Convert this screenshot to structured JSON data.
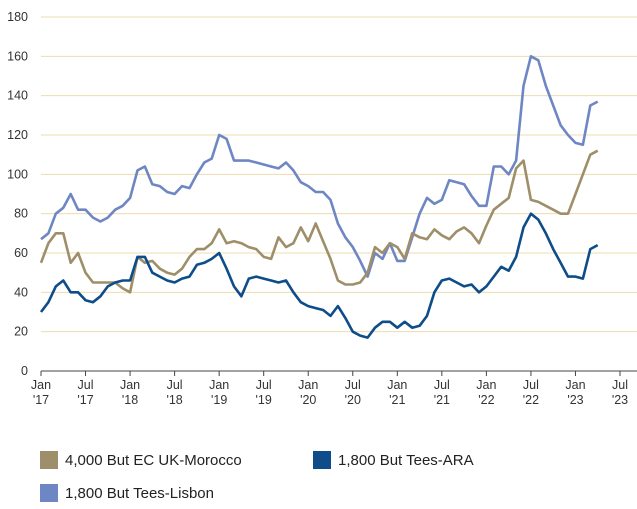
{
  "chart_data": {
    "type": "line",
    "x": [
      "2017-01",
      "2017-02",
      "2017-03",
      "2017-04",
      "2017-05",
      "2017-06",
      "2017-07",
      "2017-08",
      "2017-09",
      "2017-10",
      "2017-11",
      "2017-12",
      "2018-01",
      "2018-02",
      "2018-03",
      "2018-04",
      "2018-05",
      "2018-06",
      "2018-07",
      "2018-08",
      "2018-09",
      "2018-10",
      "2018-11",
      "2018-12",
      "2019-01",
      "2019-02",
      "2019-03",
      "2019-04",
      "2019-05",
      "2019-06",
      "2019-07",
      "2019-08",
      "2019-09",
      "2019-10",
      "2019-11",
      "2019-12",
      "2020-01",
      "2020-02",
      "2020-03",
      "2020-04",
      "2020-05",
      "2020-06",
      "2020-07",
      "2020-08",
      "2020-09",
      "2020-10",
      "2020-11",
      "2020-12",
      "2021-01",
      "2021-02",
      "2021-03",
      "2021-04",
      "2021-05",
      "2021-06",
      "2021-07",
      "2021-08",
      "2021-09",
      "2021-10",
      "2021-11",
      "2021-12",
      "2022-01",
      "2022-02",
      "2022-03",
      "2022-04",
      "2022-05",
      "2022-06",
      "2022-07",
      "2022-08",
      "2022-09",
      "2022-10",
      "2022-11",
      "2022-12",
      "2023-01",
      "2023-02",
      "2023-03",
      "2023-04"
    ],
    "series": [
      {
        "name": "4,000 But EC UK-Morocco",
        "color": "#9e8f6a",
        "values": [
          55,
          65,
          70,
          70,
          55,
          60,
          50,
          45,
          45,
          45,
          45,
          42,
          40,
          58,
          55,
          56,
          52,
          50,
          49,
          52,
          58,
          62,
          62,
          65,
          72,
          65,
          66,
          65,
          63,
          62,
          58,
          57,
          68,
          63,
          65,
          73,
          66,
          75,
          66,
          57,
          46,
          44,
          44,
          45,
          50,
          63,
          60,
          65,
          63,
          57,
          70,
          68,
          67,
          72,
          69,
          67,
          71,
          73,
          70,
          65,
          74,
          82,
          85,
          88,
          103,
          107,
          87,
          86,
          84,
          82,
          80,
          80,
          90,
          100,
          110,
          112
        ]
      },
      {
        "name": "1,800 But Tees-ARA",
        "color": "#0e4c8a",
        "values": [
          30,
          35,
          43,
          46,
          40,
          40,
          36,
          35,
          38,
          43,
          45,
          46,
          46,
          58,
          58,
          50,
          48,
          46,
          45,
          47,
          48,
          54,
          55,
          57,
          60,
          52,
          43,
          38,
          47,
          48,
          47,
          46,
          45,
          46,
          40,
          35,
          33,
          32,
          31,
          28,
          33,
          27,
          20,
          18,
          17,
          22,
          25,
          25,
          22,
          25,
          22,
          23,
          28,
          40,
          46,
          47,
          45,
          43,
          44,
          40,
          43,
          48,
          53,
          51,
          58,
          73,
          80,
          77,
          70,
          62,
          55,
          48,
          48,
          47,
          62,
          64
        ]
      },
      {
        "name": "1,800 But Tees-Lisbon",
        "color": "#6f86c4",
        "values": [
          67,
          70,
          80,
          83,
          90,
          82,
          82,
          78,
          76,
          78,
          82,
          84,
          88,
          102,
          104,
          95,
          94,
          91,
          90,
          94,
          93,
          100,
          106,
          108,
          120,
          118,
          107,
          107,
          107,
          106,
          105,
          104,
          103,
          106,
          102,
          96,
          94,
          91,
          91,
          87,
          75,
          68,
          63,
          56,
          48,
          60,
          57,
          65,
          56,
          56,
          68,
          80,
          88,
          85,
          87,
          97,
          96,
          95,
          89,
          84,
          84,
          104,
          104,
          100,
          107,
          145,
          160,
          158,
          145,
          135,
          125,
          120,
          116,
          115,
          135,
          137
        ]
      }
    ],
    "xlim": [
      "2017-01",
      "2023-07"
    ],
    "xticks": [
      {
        "value": "2017-01",
        "label": "Jan '17"
      },
      {
        "value": "2017-07",
        "label": "Jul '17"
      },
      {
        "value": "2018-01",
        "label": "Jan '18"
      },
      {
        "value": "2018-07",
        "label": "Jul '18"
      },
      {
        "value": "2019-01",
        "label": "Jan '19"
      },
      {
        "value": "2019-07",
        "label": "Jul '19"
      },
      {
        "value": "2020-01",
        "label": "Jan '20"
      },
      {
        "value": "2020-07",
        "label": "Jul '20"
      },
      {
        "value": "2021-01",
        "label": "Jan '21"
      },
      {
        "value": "2021-07",
        "label": "Jul '21"
      },
      {
        "value": "2022-01",
        "label": "Jan '22"
      },
      {
        "value": "2022-07",
        "label": "Jul '22"
      },
      {
        "value": "2023-01",
        "label": "Jan '23"
      },
      {
        "value": "2023-07",
        "label": "Jul '23"
      }
    ],
    "ylim": [
      0,
      180
    ],
    "yticks": [
      0,
      20,
      40,
      60,
      80,
      100,
      120,
      140,
      160,
      180
    ],
    "grid": true,
    "grid_color": "#eddcae"
  }
}
